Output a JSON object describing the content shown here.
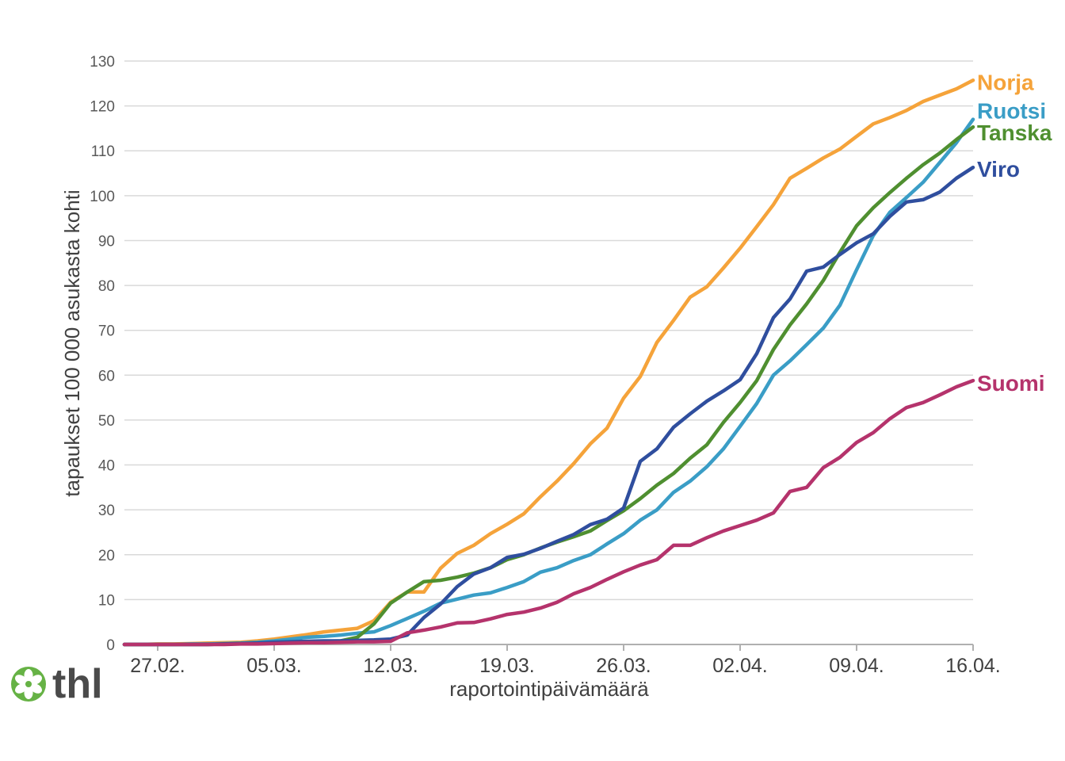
{
  "chart_data": {
    "type": "line",
    "x": [
      "25.02.",
      "26.02.",
      "27.02.",
      "28.02.",
      "29.02.",
      "01.03.",
      "02.03.",
      "03.03.",
      "04.03.",
      "05.03.",
      "06.03.",
      "07.03.",
      "08.03.",
      "09.03.",
      "10.03.",
      "11.03.",
      "12.03.",
      "13.03.",
      "14.03.",
      "15.03.",
      "16.03.",
      "17.03.",
      "18.03.",
      "19.03.",
      "20.03.",
      "21.03.",
      "22.03.",
      "23.03.",
      "24.03.",
      "25.03.",
      "26.03.",
      "27.03.",
      "28.03.",
      "29.03.",
      "30.03.",
      "31.03.",
      "01.04.",
      "02.04.",
      "03.04.",
      "04.04.",
      "05.04.",
      "06.04.",
      "07.04.",
      "08.04.",
      "09.04.",
      "10.04.",
      "11.04.",
      "12.04.",
      "13.04.",
      "14.04.",
      "15.04.",
      "16.04."
    ],
    "x_ticks": [
      "27.02.",
      "05.03.",
      "12.03.",
      "19.03.",
      "26.03.",
      "02.04.",
      "09.04.",
      "16.04."
    ],
    "y_ticks": [
      0,
      10,
      20,
      30,
      40,
      50,
      60,
      70,
      80,
      90,
      100,
      110,
      120,
      130
    ],
    "ylim": [
      0,
      130
    ],
    "xlabel": "raportointipäivämäärä",
    "ylabel": "tapaukset 100 000 asukasta kohti",
    "grid": true,
    "legend": "right",
    "series": [
      {
        "name": "Norja",
        "color": "#f5a33a",
        "values": [
          0,
          0,
          0.1,
          0.1,
          0.2,
          0.3,
          0.4,
          0.5,
          0.8,
          1.2,
          1.7,
          2.2,
          2.8,
          3.2,
          3.6,
          5.3,
          9.4,
          11.7,
          11.7,
          17.0,
          20.3,
          22.1,
          24.7,
          26.8,
          29.1,
          32.9,
          36.4,
          40.3,
          44.7,
          48.2,
          54.9,
          59.7,
          67.3,
          72.2,
          77.4,
          79.7,
          83.9,
          88.3,
          93.1,
          98.0,
          103.9,
          106.1,
          108.4,
          110.4,
          113.2,
          116.0,
          117.4,
          119.0,
          121.0,
          122.4,
          123.8,
          125.7
        ]
      },
      {
        "name": "Ruotsi",
        "color": "#3a9dc6",
        "values": [
          0,
          0,
          0,
          0,
          0.1,
          0.1,
          0.2,
          0.3,
          0.5,
          0.8,
          1.2,
          1.6,
          1.8,
          2.1,
          2.5,
          2.8,
          4.2,
          5.8,
          7.4,
          9.2,
          10.1,
          11.0,
          11.5,
          12.7,
          14.0,
          16.1,
          17.1,
          18.7,
          20.0,
          22.4,
          24.7,
          27.7,
          30.0,
          33.9,
          36.4,
          39.6,
          43.6,
          48.6,
          53.7,
          60.0,
          63.2,
          66.8,
          70.5,
          75.6,
          83.5,
          91.1,
          96.3,
          99.6,
          103.0,
          107.4,
          111.8,
          117.0
        ]
      },
      {
        "name": "Tanska",
        "color": "#4f8f30",
        "values": [
          0,
          0,
          0,
          0,
          0,
          0,
          0.1,
          0.2,
          0.3,
          0.4,
          0.5,
          0.6,
          0.7,
          0.8,
          1.6,
          4.6,
          9.2,
          11.7,
          14.0,
          14.3,
          15.0,
          15.9,
          17.1,
          18.9,
          20.0,
          21.5,
          22.8,
          24.0,
          25.3,
          27.6,
          29.8,
          32.5,
          35.5,
          38.1,
          41.5,
          44.5,
          49.5,
          53.9,
          58.8,
          65.7,
          71.2,
          75.9,
          81.1,
          87.4,
          93.3,
          97.3,
          100.7,
          103.9,
          106.9,
          109.5,
          112.5,
          115.3
        ]
      },
      {
        "name": "Viro",
        "color": "#2f4e9e",
        "values": [
          0,
          0,
          0,
          0,
          0,
          0,
          0.1,
          0.2,
          0.3,
          0.5,
          0.6,
          0.7,
          0.8,
          0.8,
          0.9,
          1.0,
          1.2,
          2.1,
          6.0,
          9.0,
          12.9,
          15.7,
          17.1,
          19.4,
          20.1,
          21.4,
          23.0,
          24.5,
          26.7,
          27.9,
          30.4,
          40.8,
          43.6,
          48.4,
          51.4,
          54.2,
          56.5,
          59.0,
          64.8,
          72.8,
          77.0,
          83.2,
          84.1,
          86.9,
          89.5,
          91.5,
          95.4,
          98.6,
          99.1,
          100.8,
          103.9,
          106.3
        ]
      },
      {
        "name": "Suomi",
        "color": "#b5336c",
        "values": [
          0,
          0,
          0,
          0,
          0,
          0,
          0,
          0.1,
          0.1,
          0.2,
          0.3,
          0.4,
          0.4,
          0.5,
          0.6,
          0.6,
          0.7,
          2.6,
          3.2,
          3.9,
          4.8,
          4.9,
          5.7,
          6.7,
          7.2,
          8.1,
          9.4,
          11.3,
          12.7,
          14.5,
          16.2,
          17.7,
          18.9,
          22.1,
          22.1,
          23.8,
          25.3,
          26.5,
          27.7,
          29.3,
          34.1,
          35.0,
          39.4,
          41.7,
          45.0,
          47.2,
          50.3,
          52.8,
          53.9,
          55.6,
          57.4,
          58.8
        ]
      }
    ]
  },
  "logo": {
    "text": "thl",
    "color": "#66b245"
  }
}
